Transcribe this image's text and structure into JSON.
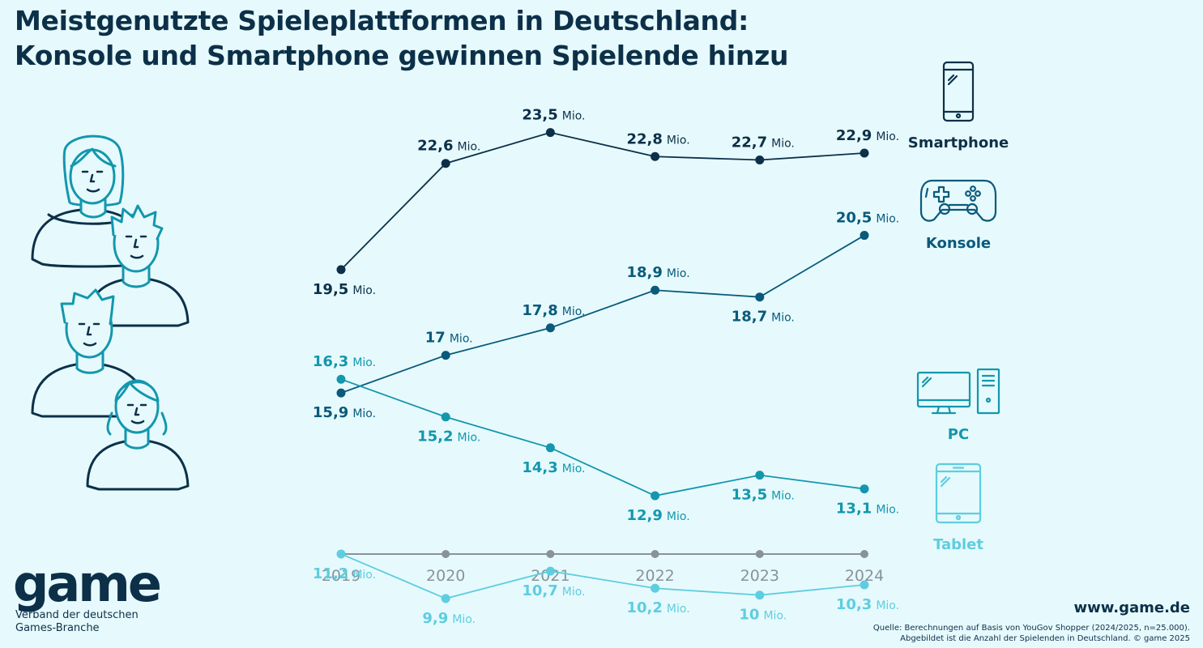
{
  "header": {
    "title_line1": "Meistgenutzte Spieleplattformen in Deutschland:",
    "title_line2": "Konsole und Smartphone gewinnen Spielende hinzu"
  },
  "chart_data": {
    "type": "line",
    "x": [
      "2019",
      "2020",
      "2021",
      "2022",
      "2023",
      "2024"
    ],
    "unit_label": "Mio.",
    "series": [
      {
        "name": "Smartphone",
        "color": "#0d3049",
        "icon": "smartphone-icon",
        "values": [
          19.5,
          22.6,
          23.5,
          22.8,
          22.7,
          22.9
        ],
        "labels": [
          "19,5",
          "22,6",
          "23,5",
          "22,8",
          "22,7",
          "22,9"
        ],
        "label_pos": [
          "below",
          "above",
          "above",
          "above",
          "above",
          "above"
        ]
      },
      {
        "name": "Konsole",
        "color": "#0a5a7c",
        "icon": "gamepad-icon",
        "values": [
          15.9,
          17.0,
          17.8,
          18.9,
          18.7,
          20.5
        ],
        "labels": [
          "15,9",
          "17",
          "17,8",
          "18,9",
          "18,7",
          "20,5"
        ],
        "label_pos": [
          "below",
          "above",
          "above",
          "above",
          "below",
          "above"
        ]
      },
      {
        "name": "PC",
        "color": "#1397ad",
        "icon": "desktop-pc-icon",
        "values": [
          16.3,
          15.2,
          14.3,
          12.9,
          13.5,
          13.1
        ],
        "labels": [
          "16,3",
          "15,2",
          "14,3",
          "12,9",
          "13,5",
          "13,1"
        ],
        "label_pos": [
          "above",
          "below",
          "below",
          "below",
          "below",
          "below"
        ]
      },
      {
        "name": "Tablet",
        "color": "#5ecde0",
        "icon": "tablet-icon",
        "values": [
          11.2,
          9.9,
          10.7,
          10.2,
          10.0,
          10.3
        ],
        "labels": [
          "11,2",
          "9,9",
          "10,7",
          "10,2",
          "10",
          "10,3"
        ],
        "label_pos": [
          "below",
          "below",
          "below",
          "below",
          "below",
          "below"
        ]
      }
    ],
    "axis_color": "#8a9299",
    "legend_placement": "right"
  },
  "logo": {
    "word": "game",
    "sub_line1": "Verband der deutschen",
    "sub_line2": "Games-Branche"
  },
  "footer": {
    "website": "www.game.de",
    "source_line1": "Quelle: Berechnungen auf Basis von YouGov Shopper (2024/2025, n=25.000).",
    "source_line2": "Abgebildet ist die Anzahl der Spielenden in Deutschland. © game 2025"
  }
}
